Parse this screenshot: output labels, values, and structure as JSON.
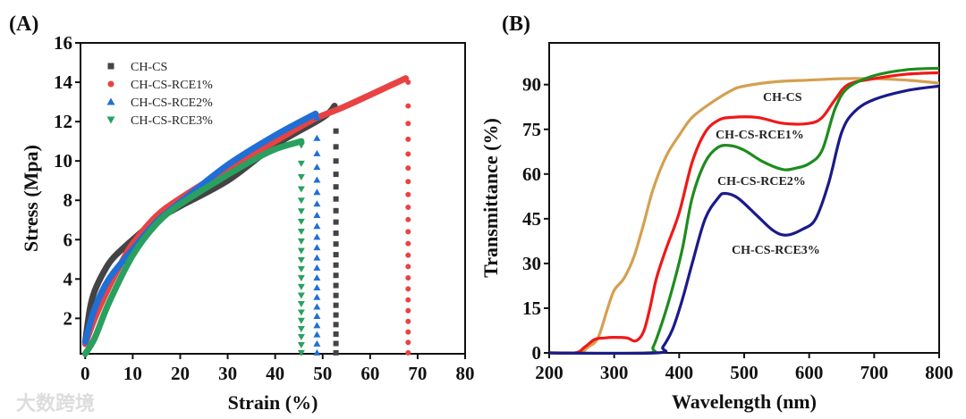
{
  "watermark": "大数跨境",
  "chart_data": [
    {
      "type": "line",
      "panel_label": "(A)",
      "xlabel": "Strain (%)",
      "ylabel": "Stress (Mpa)",
      "xlim": [
        -1,
        80
      ],
      "ylim": [
        0.2,
        16
      ],
      "xticks": [
        0,
        10,
        20,
        30,
        40,
        50,
        60,
        70,
        80
      ],
      "yticks": [
        2,
        4,
        6,
        8,
        10,
        12,
        14,
        16
      ],
      "legend_position": "top-left",
      "series": [
        {
          "name": "CH-CS",
          "color": "#444444",
          "marker": "square",
          "points": [
            [
              0,
              0.8
            ],
            [
              1,
              2.5
            ],
            [
              2,
              3.4
            ],
            [
              4,
              4.4
            ],
            [
              6,
              5.1
            ],
            [
              10,
              6
            ],
            [
              15,
              7
            ],
            [
              20,
              7.7
            ],
            [
              30,
              9
            ],
            [
              40,
              10.8
            ],
            [
              50,
              12.2
            ],
            [
              52.5,
              12.8
            ]
          ],
          "break_strain": 52.8
        },
        {
          "name": "CH-CS-RCE1%",
          "color": "#e84343",
          "marker": "circle",
          "points": [
            [
              0,
              0.7
            ],
            [
              2,
              2
            ],
            [
              5,
              3.6
            ],
            [
              8,
              5
            ],
            [
              10,
              5.8
            ],
            [
              15,
              7.2
            ],
            [
              20,
              8.1
            ],
            [
              30,
              9.6
            ],
            [
              40,
              11
            ],
            [
              48,
              12.1
            ],
            [
              55,
              12.8
            ],
            [
              67.5,
              14.2
            ]
          ],
          "break_strain": 68
        },
        {
          "name": "CH-CS-RCE2%",
          "color": "#1f6fd6",
          "marker": "triangle-up",
          "points": [
            [
              0,
              0.8
            ],
            [
              2,
              2.5
            ],
            [
              5,
              4
            ],
            [
              10,
              5.5
            ],
            [
              15,
              6.9
            ],
            [
              20,
              7.9
            ],
            [
              30,
              9.8
            ],
            [
              40,
              11.3
            ],
            [
              48.5,
              12.4
            ]
          ],
          "break_strain": 48.8
        },
        {
          "name": "CH-CS-RCE3%",
          "color": "#2aa060",
          "marker": "triangle-down",
          "points": [
            [
              0,
              0.2
            ],
            [
              2,
              1
            ],
            [
              5,
              2.8
            ],
            [
              10,
              5.2
            ],
            [
              15,
              6.8
            ],
            [
              20,
              7.8
            ],
            [
              30,
              9.3
            ],
            [
              35,
              10
            ],
            [
              40,
              10.6
            ],
            [
              45.5,
              11
            ]
          ],
          "break_strain": 45.5
        }
      ]
    },
    {
      "type": "line",
      "panel_label": "(B)",
      "xlabel": "Wavelength (nm)",
      "ylabel": "Transmittance (%)",
      "xlim": [
        200,
        800
      ],
      "ylim": [
        0,
        104
      ],
      "xticks": [
        200,
        300,
        400,
        500,
        600,
        700,
        800
      ],
      "yticks": [
        0,
        15,
        30,
        45,
        60,
        75,
        90
      ],
      "series": [
        {
          "name": "CH-CS",
          "color": "#d4a050",
          "points": [
            [
              200,
              0
            ],
            [
              245,
              0
            ],
            [
              260,
              2
            ],
            [
              275,
              5
            ],
            [
              290,
              15
            ],
            [
              300,
              21
            ],
            [
              315,
              25
            ],
            [
              330,
              32
            ],
            [
              345,
              43
            ],
            [
              360,
              55
            ],
            [
              380,
              66
            ],
            [
              400,
              73
            ],
            [
              420,
              79
            ],
            [
              450,
              84
            ],
            [
              480,
              88
            ],
            [
              500,
              89.5
            ],
            [
              550,
              91
            ],
            [
              600,
              91.5
            ],
            [
              650,
              92
            ],
            [
              700,
              92
            ],
            [
              750,
              91.5
            ],
            [
              800,
              90.5
            ]
          ]
        },
        {
          "name": "CH-CS-RCE1%",
          "color": "#f01818",
          "points": [
            [
              200,
              0
            ],
            [
              240,
              0
            ],
            [
              255,
              2
            ],
            [
              270,
              4.5
            ],
            [
              285,
              5
            ],
            [
              300,
              5.2
            ],
            [
              320,
              5
            ],
            [
              333,
              4
            ],
            [
              345,
              7
            ],
            [
              355,
              15
            ],
            [
              365,
              25
            ],
            [
              380,
              35
            ],
            [
              400,
              47
            ],
            [
              420,
              64
            ],
            [
              440,
              74
            ],
            [
              460,
              78
            ],
            [
              480,
              79
            ],
            [
              520,
              79
            ],
            [
              560,
              77
            ],
            [
              600,
              77
            ],
            [
              620,
              79
            ],
            [
              640,
              85
            ],
            [
              660,
              90
            ],
            [
              700,
              92
            ],
            [
              750,
              93.5
            ],
            [
              800,
              94
            ]
          ]
        },
        {
          "name": "CH-CS-RCE2%",
          "color": "#1e8c1e",
          "points": [
            [
              200,
              0
            ],
            [
              350,
              0
            ],
            [
              360,
              2
            ],
            [
              375,
              11
            ],
            [
              390,
              22
            ],
            [
              405,
              35
            ],
            [
              420,
              52
            ],
            [
              440,
              64
            ],
            [
              460,
              69
            ],
            [
              480,
              69.5
            ],
            [
              500,
              68
            ],
            [
              530,
              64
            ],
            [
              560,
              61.5
            ],
            [
              580,
              62
            ],
            [
              600,
              63.5
            ],
            [
              620,
              68
            ],
            [
              640,
              82
            ],
            [
              660,
              89
            ],
            [
              700,
              93
            ],
            [
              750,
              95
            ],
            [
              800,
              95.5
            ]
          ]
        },
        {
          "name": "CH-CS-RCE3%",
          "color": "#1a1a8a",
          "points": [
            [
              200,
              0
            ],
            [
              365,
              0
            ],
            [
              375,
              2
            ],
            [
              390,
              8
            ],
            [
              405,
              18
            ],
            [
              420,
              30
            ],
            [
              440,
              45
            ],
            [
              460,
              52
            ],
            [
              470,
              53.5
            ],
            [
              490,
              52
            ],
            [
              520,
              46
            ],
            [
              545,
              41
            ],
            [
              565,
              39.5
            ],
            [
              590,
              41.5
            ],
            [
              610,
              45
            ],
            [
              630,
              57
            ],
            [
              650,
              74
            ],
            [
              670,
              81
            ],
            [
              700,
              85
            ],
            [
              750,
              88
            ],
            [
              800,
              89.5
            ]
          ]
        }
      ]
    }
  ]
}
